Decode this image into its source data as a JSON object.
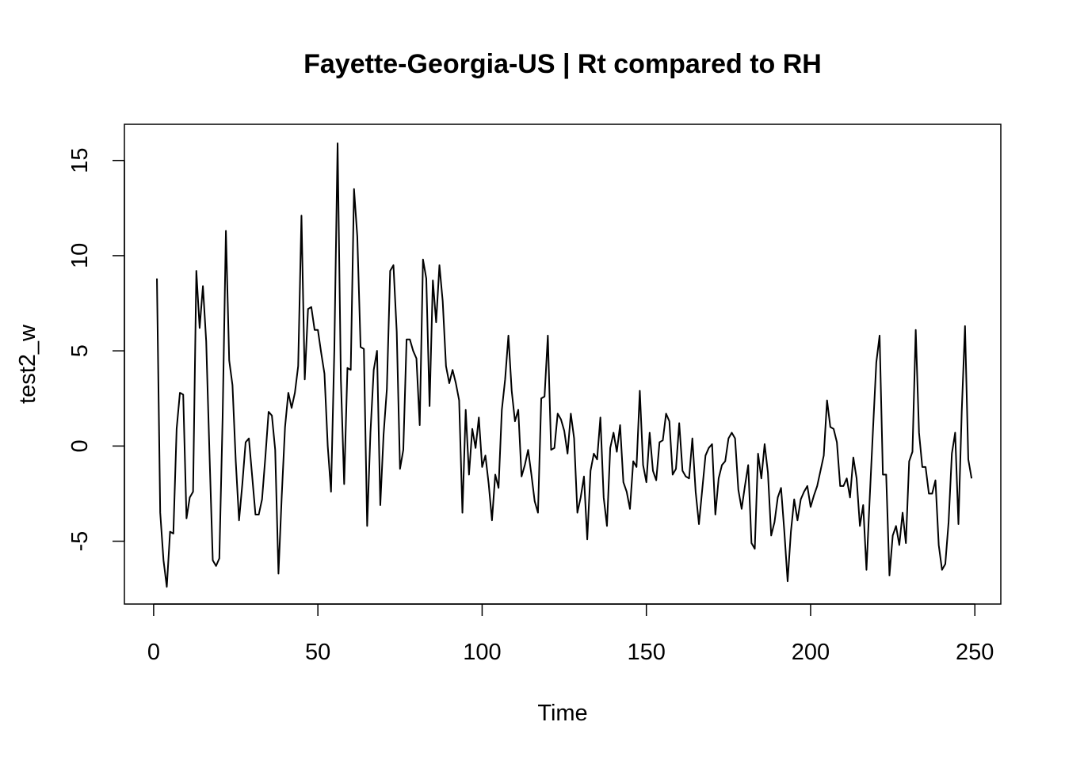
{
  "chart_data": {
    "type": "line",
    "title": "Fayette-Georgia-US | Rt compared to RH",
    "xlabel": "Time",
    "ylabel": "test2_w",
    "xlim": [
      -8.9,
      257.9
    ],
    "ylim": [
      -8.3,
      16.9
    ],
    "x_ticks": [
      0,
      50,
      100,
      150,
      200,
      250
    ],
    "y_ticks": [
      -5,
      0,
      5,
      10,
      15
    ],
    "x_tick_labels": [
      "0",
      "50",
      "100",
      "150",
      "200",
      "250"
    ],
    "y_tick_labels": [
      "-5",
      "0",
      "5",
      "10",
      "15"
    ],
    "grid": false,
    "legend": "none",
    "line_color": "#000000",
    "series": [
      {
        "x_start": 1,
        "x_step": 1,
        "values": [
          8.8,
          -3.5,
          -6.0,
          -7.4,
          -4.5,
          -4.6,
          0.9,
          2.8,
          2.7,
          -3.8,
          -2.7,
          -2.4,
          9.2,
          6.2,
          8.4,
          5.5,
          -0.4,
          -6.0,
          -6.3,
          -5.9,
          1.5,
          11.3,
          4.5,
          3.2,
          -0.8,
          -3.9,
          -2.0,
          0.2,
          0.4,
          -1.6,
          -3.6,
          -3.6,
          -2.8,
          -0.6,
          1.8,
          1.6,
          -0.2,
          -6.7,
          -2.6,
          1.0,
          2.8,
          2.0,
          2.8,
          4.2,
          12.1,
          3.5,
          7.2,
          7.3,
          6.1,
          6.1,
          4.9,
          3.8,
          0.0,
          -2.4,
          5.0,
          15.9,
          3.5,
          -2.0,
          4.1,
          4.0,
          13.5,
          11.0,
          5.2,
          5.1,
          -4.2,
          0.7,
          4.0,
          5.0,
          -3.1,
          0.6,
          3.0,
          9.2,
          9.5,
          6.0,
          -1.2,
          -0.2,
          5.6,
          5.6,
          5.0,
          4.6,
          1.1,
          9.8,
          8.8,
          2.1,
          8.7,
          6.5,
          9.5,
          7.6,
          4.2,
          3.3,
          4.0,
          3.3,
          2.4,
          -3.5,
          1.9,
          -1.5,
          0.9,
          -0.1,
          1.5,
          -1.1,
          -0.5,
          -2.0,
          -3.9,
          -1.5,
          -2.2,
          1.9,
          3.5,
          5.8,
          2.9,
          1.3,
          1.9,
          -1.6,
          -1.0,
          -0.2,
          -1.5,
          -2.9,
          -3.5,
          2.5,
          2.6,
          5.8,
          -0.2,
          -0.1,
          1.7,
          1.4,
          0.8,
          -0.4,
          1.7,
          0.4,
          -3.5,
          -2.7,
          -1.6,
          -4.9,
          -1.3,
          -0.4,
          -0.7,
          1.5,
          -2.7,
          -4.2,
          -0.1,
          0.7,
          -0.3,
          1.1,
          -1.9,
          -2.4,
          -3.3,
          -0.8,
          -1.1,
          2.9,
          -1.0,
          -1.9,
          0.7,
          -1.3,
          -1.8,
          0.2,
          0.3,
          1.7,
          1.3,
          -1.5,
          -1.2,
          1.2,
          -1.3,
          -1.6,
          -1.7,
          0.4,
          -2.4,
          -4.1,
          -2.3,
          -0.5,
          -0.1,
          0.1,
          -3.6,
          -1.7,
          -1.0,
          -0.8,
          0.4,
          0.7,
          0.4,
          -2.3,
          -3.3,
          -2.1,
          -1.0,
          -5.1,
          -5.4,
          -0.4,
          -1.7,
          0.1,
          -1.4,
          -4.7,
          -4.0,
          -2.7,
          -2.2,
          -4.5,
          -7.1,
          -4.5,
          -2.8,
          -3.9,
          -2.8,
          -2.4,
          -2.1,
          -3.2,
          -2.6,
          -2.1,
          -1.3,
          -0.5,
          2.4,
          1.0,
          0.9,
          0.2,
          -2.1,
          -2.1,
          -1.7,
          -2.7,
          -0.6,
          -1.7,
          -4.2,
          -3.1,
          -6.5,
          -2.7,
          0.9,
          4.4,
          5.8,
          -1.5,
          -1.5,
          -6.8,
          -4.7,
          -4.2,
          -5.2,
          -3.5,
          -5.1,
          -0.8,
          -0.3,
          6.1,
          0.7,
          -1.1,
          -1.1,
          -2.5,
          -2.5,
          -1.8,
          -5.2,
          -6.5,
          -6.2,
          -4.0,
          -0.4,
          0.7,
          -4.1,
          1.8,
          6.3,
          -0.7,
          -1.7
        ]
      }
    ]
  }
}
